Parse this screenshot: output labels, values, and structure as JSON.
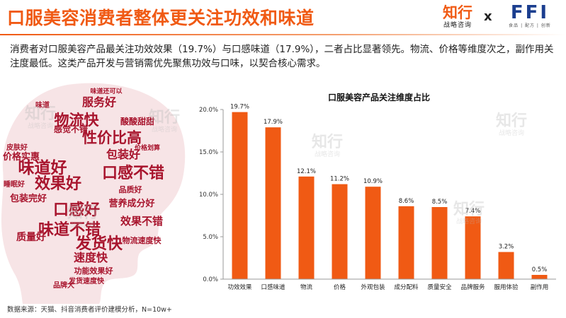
{
  "title": "口服美容消费者整体更关注功效和味道",
  "logo": {
    "zhixing_name": "知行",
    "zhixing_sub": "战略咨询",
    "cross": "x",
    "ffi_name": "FFI",
    "ffi_sub": "食品 | 配方 | 创新"
  },
  "summary": "消费者对口服美容产品最关注功效效果（19.7%）与口感味道（17.9%），二者占比显著领先。物流、价格等维度次之，副作用关注度最低。这类产品开发与营销需优先聚焦功效与口味，以契合核心需求。",
  "source": "数据来源：天猫、抖音消费者评价建模分析，N=10w+",
  "watermark": {
    "name": "知行",
    "sub": "战略咨询"
  },
  "wordcloud": [
    {
      "text": "味道好",
      "color": "#a8142d"
    },
    {
      "text": "服务好",
      "color": "#a8142d"
    },
    {
      "text": "物流快",
      "color": "#a8142d"
    },
    {
      "text": "性价比高",
      "color": "#a8142d"
    },
    {
      "text": "效果好",
      "color": "#a8142d"
    },
    {
      "text": "口感不错",
      "color": "#a8142d"
    },
    {
      "text": "口感好",
      "color": "#a8142d"
    },
    {
      "text": "包装好",
      "color": "#a8142d"
    },
    {
      "text": "发货快",
      "color": "#a8142d"
    },
    {
      "text": "味道不错",
      "color": "#a8142d"
    },
    {
      "text": "速度快",
      "color": "#a8142d"
    },
    {
      "text": "效果不错",
      "color": "#a8142d"
    },
    {
      "text": "质量好",
      "color": "#a8142d"
    },
    {
      "text": "包装完好",
      "color": "#a8142d"
    },
    {
      "text": "营养成分好",
      "color": "#a8142d"
    },
    {
      "text": "酸酸甜甜",
      "color": "#a8142d"
    },
    {
      "text": "价格实惠",
      "color": "#a8142d"
    },
    {
      "text": "物流速度快",
      "color": "#a8142d"
    },
    {
      "text": "功能效果好",
      "color": "#a8142d"
    },
    {
      "text": "发货速度快",
      "color": "#a8142d"
    },
    {
      "text": "感觉不错",
      "color": "#a8142d"
    },
    {
      "text": "皮肤好",
      "color": "#a8142d"
    },
    {
      "text": "品质好",
      "color": "#a8142d"
    },
    {
      "text": "味道",
      "color": "#a8142d"
    },
    {
      "text": "品牌大",
      "color": "#a8142d"
    },
    {
      "text": "味道还可以",
      "color": "#a8142d"
    },
    {
      "text": "价格划算",
      "color": "#a8142d"
    },
    {
      "text": "睡眠好",
      "color": "#a8142d"
    }
  ],
  "chart_data": {
    "type": "bar",
    "title": "口服美容产品关注维度占比",
    "categories": [
      "功效效果",
      "口感味道",
      "物流",
      "价格",
      "外观包装",
      "成分配料",
      "质量安全",
      "品牌服务",
      "服用体验",
      "副作用"
    ],
    "values": [
      19.7,
      17.9,
      12.1,
      11.2,
      10.9,
      8.6,
      8.5,
      7.4,
      3.2,
      0.5
    ],
    "value_labels": [
      "19.7%",
      "17.9%",
      "12.1%",
      "11.2%",
      "10.9%",
      "8.6%",
      "8.5%",
      "7.4%",
      "3.2%",
      "0.5%"
    ],
    "yticks": [
      0,
      5,
      10,
      15,
      20
    ],
    "ytick_labels": [
      "0.0%",
      "5.0%",
      "10.0%",
      "15.0%",
      "20.0%"
    ],
    "ylim": [
      0,
      20
    ],
    "xlabel": "",
    "ylabel": "",
    "grid": false,
    "legend": "none",
    "bar_color": "#f05a14"
  }
}
